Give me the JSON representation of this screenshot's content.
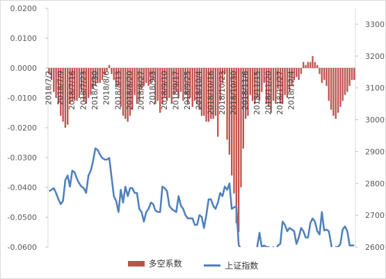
{
  "chart_data": {
    "type": "bar+line",
    "title": "",
    "legend_position": "bottom",
    "left_axis": {
      "min": -0.06,
      "max": 0.02,
      "ticks": [
        "0.0200",
        "0.0100",
        "0.0000",
        "-0.0100",
        "-0.0200",
        "-0.0300",
        "-0.0400",
        "-0.0500",
        "-0.0600"
      ]
    },
    "right_axis": {
      "min": 2600,
      "max": 3350,
      "ticks": [
        "3300",
        "3200",
        "3100",
        "3000",
        "2900",
        "2800",
        "2700",
        "2600"
      ]
    },
    "x_tick_labels": [
      "2018/7/2",
      "2018/7/9",
      "2018/7/16",
      "2018/7/23",
      "2018/7/30",
      "2018/8/6",
      "2018/8/13",
      "2018/8/20",
      "2018/8/27",
      "2018/9/3",
      "2018/9/10",
      "2018/9/17",
      "2018/9/25",
      "2018/10/4",
      "2018/10/16",
      "2018/10/23",
      "2018/10/30",
      "2018/11/6",
      "2018/11/15",
      "2018/11/20",
      "2018/11/27",
      "2018/12/4"
    ],
    "tick_every": 5,
    "series": [
      {
        "name": "多空系数",
        "axis": "left",
        "type": "bar",
        "color": "#C0504D",
        "values": [
          -0.002,
          -0.004,
          -0.008,
          -0.01,
          -0.012,
          -0.016,
          -0.018,
          -0.02,
          -0.019,
          -0.012,
          -0.011,
          -0.011,
          -0.011,
          -0.01,
          -0.008,
          -0.011,
          -0.012,
          -0.01,
          -0.009,
          -0.007,
          -0.006,
          -0.005,
          -0.005,
          -0.004,
          -0.002,
          -0.001,
          0.001,
          -0.002,
          -0.004,
          -0.006,
          -0.006,
          -0.013,
          -0.016,
          -0.017,
          -0.018,
          -0.016,
          -0.014,
          -0.009,
          -0.012,
          -0.011,
          -0.007,
          -0.006,
          -0.005,
          -0.006,
          -0.005,
          -0.004,
          -0.012,
          -0.011,
          -0.015,
          -0.012,
          -0.01,
          -0.011,
          -0.01,
          -0.012,
          -0.009,
          -0.008,
          -0.01,
          -0.008,
          -0.011,
          -0.009,
          -0.012,
          -0.01,
          -0.013,
          -0.011,
          -0.012,
          -0.014,
          -0.016,
          -0.016,
          -0.018,
          -0.018,
          -0.017,
          -0.017,
          -0.016,
          -0.023,
          -0.011,
          -0.005,
          -0.002,
          -0.024,
          -0.029,
          -0.036,
          -0.042,
          -0.052,
          -0.055,
          -0.04,
          -0.027,
          -0.017,
          -0.016,
          -0.009,
          -0.011,
          -0.012,
          -0.01,
          -0.011,
          -0.008,
          -0.005,
          -0.012,
          -0.013,
          -0.015,
          -0.011,
          -0.012,
          -0.007,
          -0.012,
          -0.012,
          -0.009,
          -0.01,
          -0.008,
          -0.006,
          -0.004,
          -0.003,
          -0.004,
          -0.002,
          0.002,
          0.001,
          0.002,
          0.002,
          0.004,
          0.002,
          0.001,
          -0.002,
          -0.005,
          -0.004,
          -0.006,
          -0.011,
          -0.014,
          -0.016,
          -0.017,
          -0.015,
          -0.013,
          -0.011,
          -0.009,
          -0.008,
          -0.006,
          -0.004,
          -0.004
        ]
      },
      {
        "name": "上证指数",
        "axis": "right",
        "type": "line",
        "color": "#4F81BD",
        "values": [
          2775,
          2780,
          2785,
          2770,
          2750,
          2735,
          2745,
          2810,
          2825,
          2790,
          2840,
          2835,
          2815,
          2800,
          2790,
          2785,
          2770,
          2825,
          2840,
          2870,
          2910,
          2905,
          2890,
          2880,
          2875,
          2875,
          2880,
          2820,
          2760,
          2745,
          2710,
          2780,
          2740,
          2790,
          2760,
          2785,
          2785,
          2770,
          2770,
          2720,
          2710,
          2680,
          2710,
          2720,
          2740,
          2735,
          2715,
          2710,
          2710,
          2790,
          2785,
          2775,
          2730,
          2720,
          2715,
          2710,
          2760,
          2730,
          2720,
          2700,
          2690,
          2690,
          2690,
          2670,
          2670,
          2700,
          2695,
          2660,
          2700,
          2750,
          2750,
          2730,
          2720,
          2740,
          2770,
          2760,
          2790,
          2780,
          2800,
          2720,
          2725,
          2728,
          2606,
          2595,
          2570,
          2530,
          2560,
          2580,
          2560,
          2580,
          2600,
          2645,
          2600,
          2605,
          2600,
          2600,
          2590,
          2600,
          2590,
          2605,
          2610,
          2680,
          2670,
          2650,
          2660,
          2655,
          2650,
          2610,
          2630,
          2660,
          2650,
          2630,
          2630,
          2675,
          2690,
          2680,
          2650,
          2640,
          2710,
          2652,
          2655,
          2650,
          2610,
          2560,
          2600,
          2600,
          2610,
          2655,
          2665,
          2650,
          2605,
          2605,
          2605
        ]
      }
    ]
  }
}
